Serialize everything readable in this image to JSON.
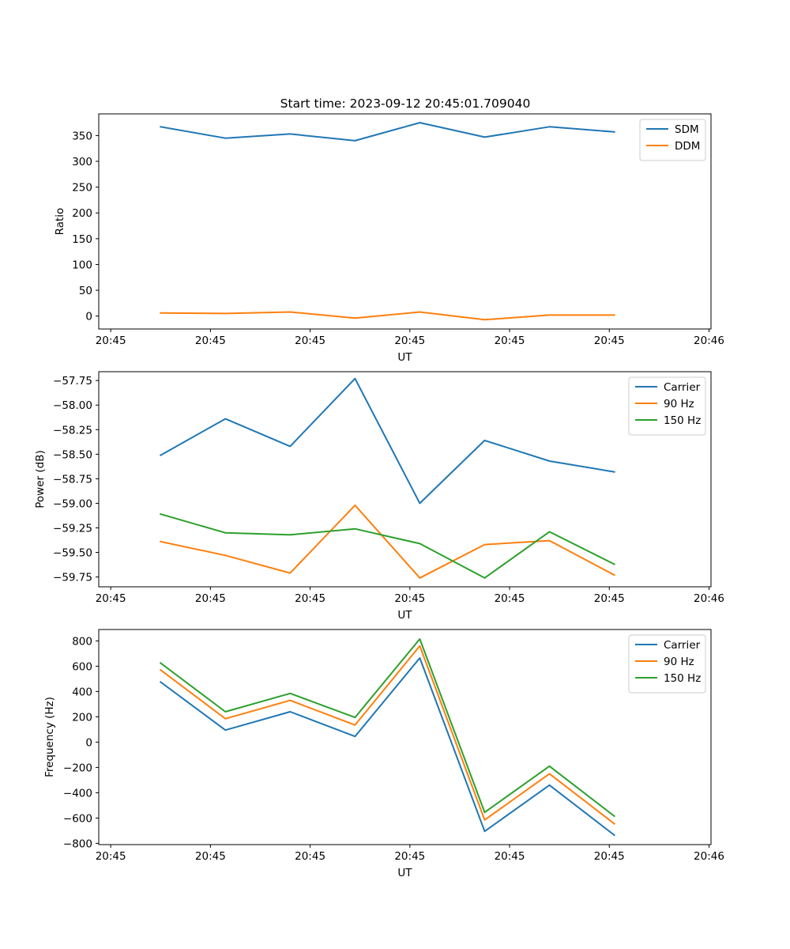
{
  "figure_title": "Start time: 2023-09-12 20:45:01.709040",
  "colors": {
    "blue": "#1f77b4",
    "orange": "#ff7f0e",
    "green": "#2ca02c"
  },
  "chart_data": [
    {
      "type": "line",
      "title": "Start time: 2023-09-12 20:45:01.709040",
      "xlabel": "UT",
      "ylabel": "Ratio",
      "x_ticks": [
        {
          "value": 0.0,
          "label": "20:45"
        },
        {
          "value": 1.0,
          "label": "20:45"
        },
        {
          "value": 2.0,
          "label": "20:45"
        },
        {
          "value": 3.0,
          "label": "20:45"
        },
        {
          "value": 4.0,
          "label": "20:45"
        },
        {
          "value": 5.0,
          "label": "20:45"
        },
        {
          "value": 6.0,
          "label": "20:46"
        }
      ],
      "xlim": [
        -0.12,
        6.02
      ],
      "x": [
        0.5,
        1.15,
        1.8,
        2.45,
        3.1,
        3.75,
        4.4,
        5.05
      ],
      "ylim": [
        -25,
        392
      ],
      "y_ticks": [
        0,
        50,
        100,
        150,
        200,
        250,
        300,
        350
      ],
      "series": [
        {
          "name": "SDM",
          "color": "#1f77b4",
          "values": [
            367,
            345,
            353,
            340,
            375,
            347,
            367,
            357
          ]
        },
        {
          "name": "DDM",
          "color": "#ff7f0e",
          "values": [
            6,
            5,
            8,
            -4,
            8,
            -7,
            2,
            2
          ]
        }
      ],
      "legend": "upper right",
      "grid": false
    },
    {
      "type": "line",
      "title": "",
      "xlabel": "UT",
      "ylabel": "Power (dB)",
      "x_ticks": [
        {
          "value": 0.0,
          "label": "20:45"
        },
        {
          "value": 1.0,
          "label": "20:45"
        },
        {
          "value": 2.0,
          "label": "20:45"
        },
        {
          "value": 3.0,
          "label": "20:45"
        },
        {
          "value": 4.0,
          "label": "20:45"
        },
        {
          "value": 5.0,
          "label": "20:45"
        },
        {
          "value": 6.0,
          "label": "20:46"
        }
      ],
      "xlim": [
        -0.12,
        6.02
      ],
      "x": [
        0.5,
        1.15,
        1.8,
        2.45,
        3.1,
        3.75,
        4.4,
        5.05
      ],
      "ylim": [
        -59.85,
        -57.66
      ],
      "y_ticks": [
        -59.75,
        -59.5,
        -59.25,
        -59.0,
        -58.75,
        -58.5,
        -58.25,
        -58.0,
        -57.75
      ],
      "y_tick_labels": [
        "−59.75",
        "−59.50",
        "−59.25",
        "−59.00",
        "−58.75",
        "−58.50",
        "−58.25",
        "−58.00",
        "−57.75"
      ],
      "series": [
        {
          "name": "Carrier",
          "color": "#1f77b4",
          "values": [
            -58.51,
            -58.14,
            -58.42,
            -57.73,
            -59.0,
            -58.36,
            -58.57,
            -58.68
          ]
        },
        {
          "name": "90 Hz",
          "color": "#ff7f0e",
          "values": [
            -59.39,
            -59.53,
            -59.71,
            -59.02,
            -59.76,
            -59.42,
            -59.38,
            -59.73
          ]
        },
        {
          "name": "150 Hz",
          "color": "#2ca02c",
          "values": [
            -59.11,
            -59.3,
            -59.32,
            -59.26,
            -59.41,
            -59.76,
            -59.29,
            -59.62
          ]
        }
      ],
      "legend": "upper right",
      "grid": false
    },
    {
      "type": "line",
      "title": "",
      "xlabel": "UT",
      "ylabel": "Frequency (Hz)",
      "x_ticks": [
        {
          "value": 0.0,
          "label": "20:45"
        },
        {
          "value": 1.0,
          "label": "20:45"
        },
        {
          "value": 2.0,
          "label": "20:45"
        },
        {
          "value": 3.0,
          "label": "20:45"
        },
        {
          "value": 4.0,
          "label": "20:45"
        },
        {
          "value": 5.0,
          "label": "20:45"
        },
        {
          "value": 6.0,
          "label": "20:46"
        }
      ],
      "xlim": [
        -0.12,
        6.02
      ],
      "x": [
        0.5,
        1.15,
        1.8,
        2.45,
        3.1,
        3.75,
        4.4,
        5.05
      ],
      "ylim": [
        -810,
        890
      ],
      "y_ticks": [
        -800,
        -600,
        -400,
        -200,
        0,
        200,
        400,
        600,
        800
      ],
      "y_tick_labels": [
        "−800",
        "−600",
        "−400",
        "−200",
        "0",
        "200",
        "400",
        "600",
        "800"
      ],
      "series": [
        {
          "name": "Carrier",
          "color": "#1f77b4",
          "values": [
            475,
            95,
            240,
            45,
            665,
            -705,
            -340,
            -735
          ]
        },
        {
          "name": "90 Hz",
          "color": "#ff7f0e",
          "values": [
            570,
            185,
            330,
            135,
            760,
            -615,
            -250,
            -645
          ]
        },
        {
          "name": "150 Hz",
          "color": "#2ca02c",
          "values": [
            625,
            240,
            385,
            195,
            815,
            -555,
            -190,
            -585
          ]
        }
      ],
      "legend": "upper right",
      "grid": false
    }
  ]
}
